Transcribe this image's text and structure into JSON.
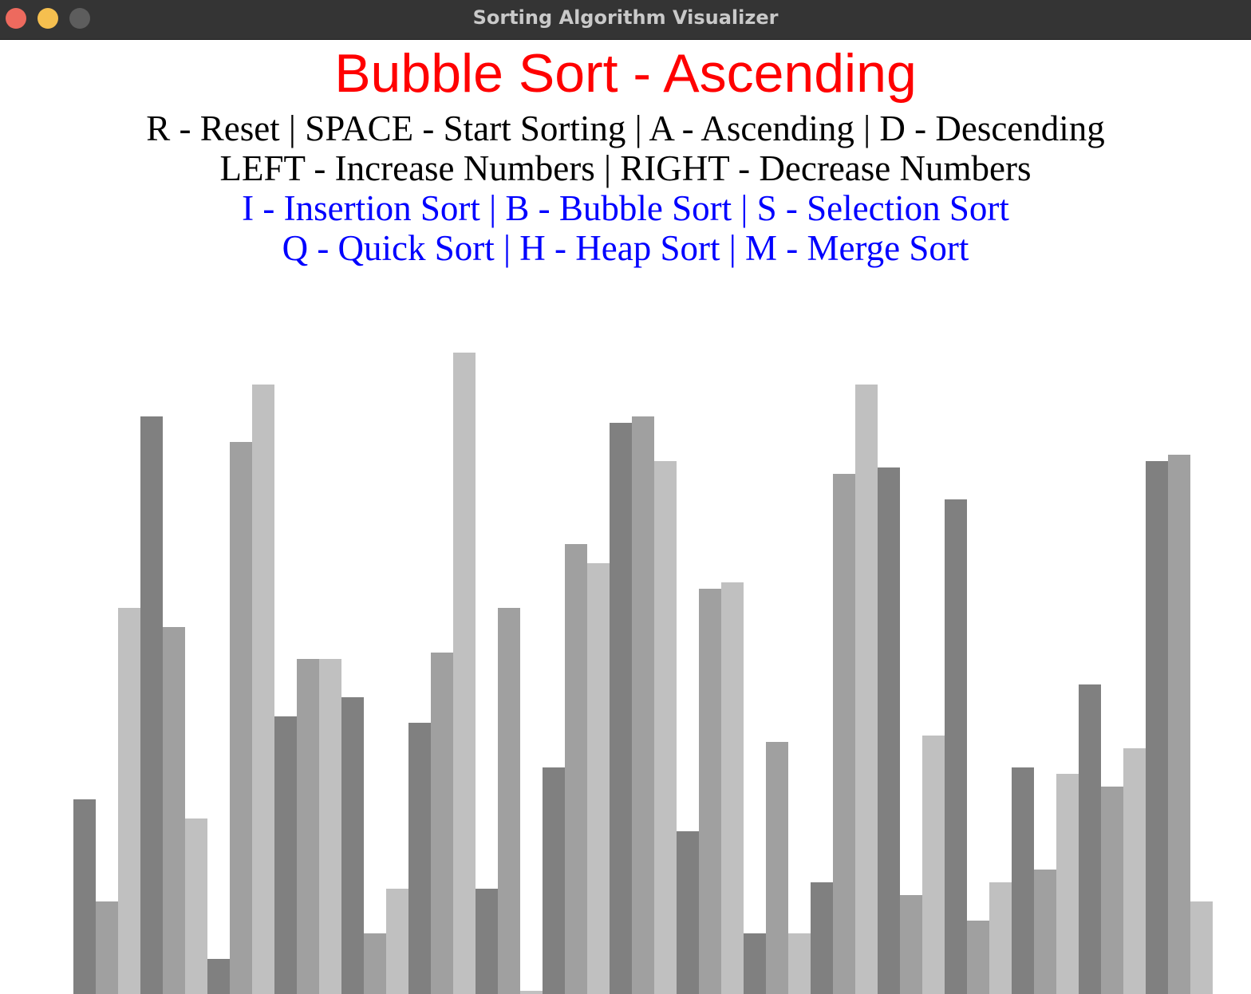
{
  "window": {
    "title": "Sorting Algorithm Visualizer"
  },
  "heading": {
    "text": "Bubble Sort - Ascending",
    "color": "#ff0000"
  },
  "help": {
    "line1": "R - Reset | SPACE - Start Sorting | A - Ascending | D - Descending",
    "line2": "LEFT - Increase Numbers | RIGHT - Decrease Numbers",
    "line3": "I - Insertion Sort | B - Bubble Sort | S - Selection Sort",
    "line4": "Q - Quick Sort | H - Heap Sort | M - Merge Sort",
    "text_color": "#000000",
    "algorithm_color": "#0000ff"
  },
  "chart_data": {
    "type": "bar",
    "values": [
      30,
      14,
      60,
      90,
      57,
      27,
      5,
      86,
      95,
      43,
      52,
      52,
      46,
      9,
      16,
      42,
      53,
      100,
      16,
      60,
      0,
      35,
      70,
      67,
      89,
      90,
      83,
      25,
      63,
      64,
      9,
      39,
      9,
      17,
      81,
      95,
      82,
      15,
      40,
      77,
      11,
      17,
      35,
      19,
      34,
      48,
      32,
      38,
      83,
      84,
      14
    ],
    "bar_colors": [
      "#808080",
      "#a0a0a0",
      "#c0c0c0"
    ]
  }
}
